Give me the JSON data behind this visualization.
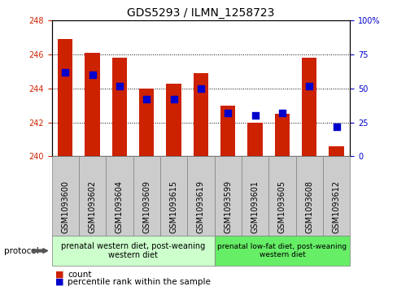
{
  "title": "GDS5293 / ILMN_1258723",
  "samples": [
    "GSM1093600",
    "GSM1093602",
    "GSM1093604",
    "GSM1093609",
    "GSM1093615",
    "GSM1093619",
    "GSM1093599",
    "GSM1093601",
    "GSM1093605",
    "GSM1093608",
    "GSM1093612"
  ],
  "counts": [
    246.9,
    246.1,
    245.8,
    244.0,
    244.3,
    244.9,
    243.0,
    242.0,
    242.5,
    245.8,
    240.6
  ],
  "percentiles": [
    62,
    60,
    52,
    42,
    42,
    50,
    32,
    30,
    32,
    52,
    22
  ],
  "ylim_left": [
    240,
    248
  ],
  "ylim_right": [
    0,
    100
  ],
  "yticks_left": [
    240,
    242,
    244,
    246,
    248
  ],
  "yticks_right": [
    0,
    25,
    50,
    75,
    100
  ],
  "bar_color": "#cc2200",
  "dot_color": "#0000cc",
  "group1_label": "prenatal western diet, post-weaning\nwestern diet",
  "group2_label": "prenatal low-fat diet, post-weaning\nwestern diet",
  "group1_color": "#ccffcc",
  "group2_color": "#66ee66",
  "sample_box_color": "#cccccc",
  "group1_count": 6,
  "group2_count": 5,
  "protocol_label": "protocol",
  "legend1": "count",
  "legend2": "percentile rank within the sample",
  "bar_width": 0.55,
  "dot_size": 35,
  "title_fontsize": 10,
  "tick_fontsize": 7,
  "label_fontsize": 7,
  "legend_fontsize": 7.5
}
